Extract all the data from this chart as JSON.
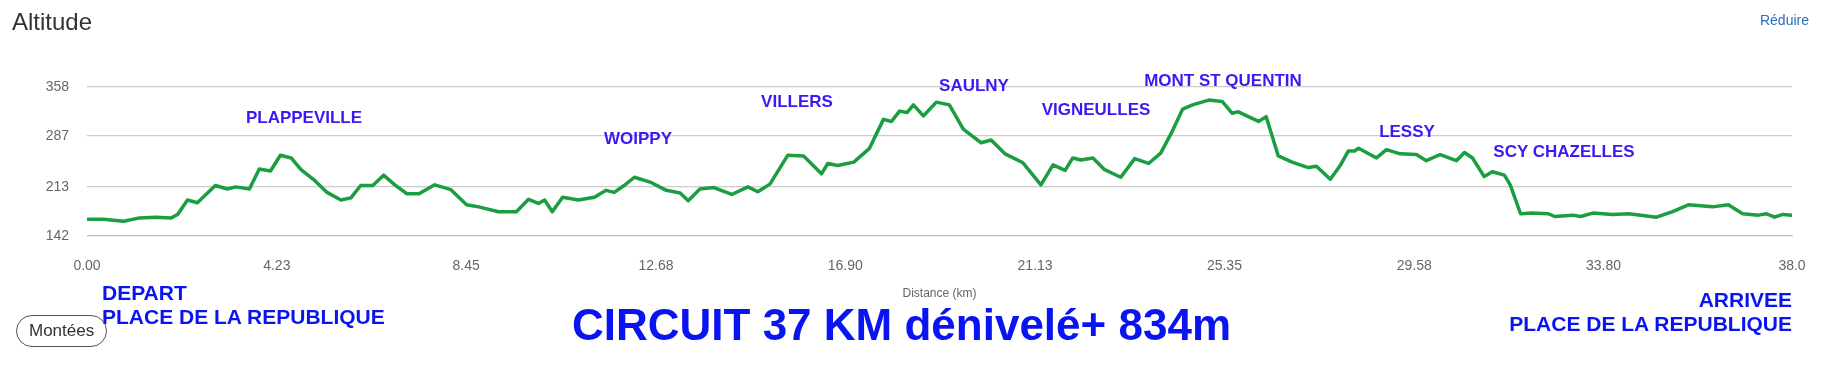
{
  "chart_data": {
    "type": "line",
    "title": "Altitude",
    "xlabel": "Distance (km)",
    "x": [
      0,
      0.37,
      0.82,
      1.17,
      1.53,
      1.88,
      2.02,
      2.24,
      2.46,
      2.86,
      3.13,
      3.31,
      3.62,
      3.84,
      4.09,
      4.31,
      4.55,
      4.77,
      5.08,
      5.35,
      5.66,
      5.88,
      6.1,
      6.37,
      6.61,
      6.86,
      7.13,
      7.4,
      7.75,
      8.11,
      8.46,
      8.73,
      9.17,
      9.57,
      9.84,
      10.06,
      10.2,
      10.37,
      10.6,
      10.95,
      11.31,
      11.57,
      11.75,
      11.97,
      12.2,
      12.55,
      12.91,
      13.22,
      13.4,
      13.66,
      13.97,
      14.37,
      14.73,
      14.95,
      15.22,
      15.62,
      15.97,
      16.37,
      16.51,
      16.73,
      17.09,
      17.44,
      17.75,
      17.93,
      18.11,
      18.28,
      18.42,
      18.64,
      18.93,
      19.22,
      19.53,
      19.93,
      20.15,
      20.46,
      20.86,
      21.26,
      21.53,
      21.8,
      21.97,
      22.15,
      22.42,
      22.68,
      23.04,
      23.35,
      23.66,
      23.93,
      24.19,
      24.42,
      24.64,
      25,
      25.3,
      25.52,
      25.66,
      26.11,
      26.28,
      26.55,
      26.86,
      27.22,
      27.4,
      27.71,
      27.93,
      28.11,
      28.25,
      28.34,
      28.74,
      28.96,
      29.27,
      29.63,
      29.85,
      30.16,
      30.52,
      30.7,
      30.88,
      31.14,
      31.32,
      31.59,
      31.72,
      31.95,
      32.21,
      32.57,
      32.71,
      33.11,
      33.29,
      33.56,
      34,
      34.36,
      34.98,
      35.34,
      35.69,
      36.23,
      36.58,
      36.9,
      37.25,
      37.43,
      37.61,
      37.79,
      38
    ],
    "series": [
      {
        "color": "#1a9e3f",
        "values": [
          166,
          166,
          163,
          168,
          169,
          168,
          173,
          194,
          190,
          215,
          210,
          213,
          210,
          239,
          236,
          259,
          255,
          238,
          222,
          205,
          194,
          197,
          215,
          215,
          230,
          216,
          203,
          203,
          216,
          209,
          187,
          184,
          177,
          177,
          195,
          189,
          194,
          177,
          198,
          194,
          198,
          208,
          205,
          215,
          227,
          220,
          208,
          204,
          193,
          210,
          212,
          202,
          213,
          206,
          217,
          259,
          258,
          232,
          247,
          244,
          249,
          269,
          311,
          308,
          323,
          321,
          332,
          316,
          336,
          332,
          297,
          277,
          281,
          261,
          248,
          216,
          245,
          237,
          255,
          252,
          255,
          238,
          227,
          254,
          247,
          262,
          294,
          326,
          332,
          339,
          337,
          320,
          322,
          308,
          315,
          258,
          249,
          241,
          243,
          224,
          244,
          265,
          265,
          269,
          255,
          267,
          261,
          260,
          251,
          260,
          251,
          263,
          255,
          228,
          235,
          230,
          216,
          174,
          175,
          174,
          170,
          172,
          170,
          175,
          173,
          174,
          169,
          177,
          187,
          184,
          187,
          174,
          172,
          174,
          169,
          173,
          172
        ]
      }
    ],
    "xlim": [
      0,
      38
    ],
    "xticks": [
      {
        "value": 0,
        "label": "0.00"
      },
      4.23,
      8.45,
      12.68,
      {
        "value": 16.9,
        "label": "16.90"
      },
      21.13,
      25.35,
      29.58,
      {
        "value": 33.8,
        "label": "33.80"
      },
      {
        "value": 38,
        "label": "38.0"
      }
    ],
    "ylim": [
      142,
      358
    ],
    "yticks": [
      142,
      213,
      287,
      358
    ],
    "grid": "y",
    "legend": false,
    "marker": "none",
    "line_style": "solid",
    "annotations": [
      "PLAPPEVILLE",
      "WOIPPY",
      "VILLERS",
      "SAULNY",
      "VIGNEULLES",
      "MONT ST QUENTIN",
      "LESSY",
      "SCY CHAZELLES",
      "DEPART\nPLACE DE LA REPUBLIQUE",
      "CIRCUIT 37 KM dénivelé+ 834m",
      "ARRIVEE\nPLACE DE LA REPUBLIQUE",
      "Réduire",
      "Montées"
    ]
  }
}
